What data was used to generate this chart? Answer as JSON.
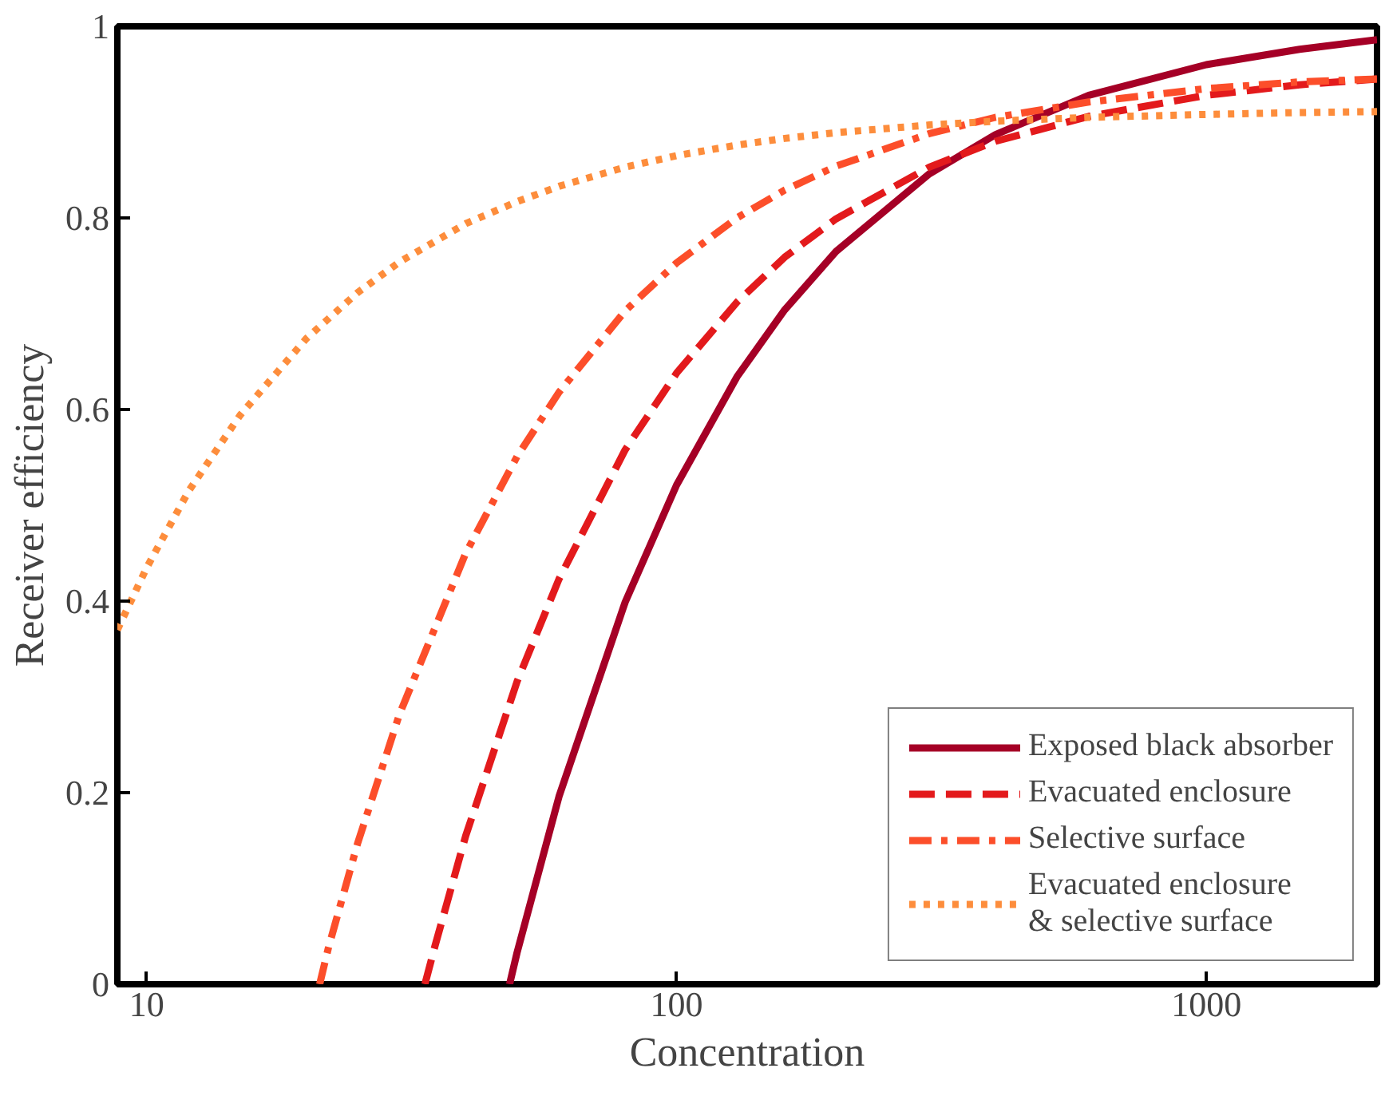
{
  "chart_data": {
    "type": "line",
    "xlabel": "Concentration",
    "ylabel": "Receiver efficiency",
    "log": "x",
    "xlim": [
      8.8,
      2100
    ],
    "xticks": [
      10,
      100,
      1000
    ],
    "ylim": [
      0,
      1
    ],
    "yticks": [
      0,
      0.2,
      0.4,
      0.6,
      0.8,
      1
    ],
    "grid": false,
    "legend": "bottom right",
    "series": [
      {
        "name": "Exposed black absorber",
        "color": "#a50026",
        "line_style": "solid",
        "x": [
          48.4,
          50,
          60,
          80,
          100,
          130,
          160,
          200,
          300,
          400,
          600,
          1000,
          1500,
          2100
        ],
        "values": [
          0,
          0.033,
          0.196,
          0.399,
          0.521,
          0.634,
          0.704,
          0.765,
          0.846,
          0.887,
          0.928,
          0.96,
          0.976,
          0.986
        ]
      },
      {
        "name": "Evacuated enclosure",
        "color": "#e31a1c",
        "line_style": "dashed",
        "x": [
          33.5,
          35,
          40,
          50,
          60,
          80,
          100,
          130,
          160,
          200,
          300,
          400,
          600,
          1000,
          1500,
          2100
        ],
        "values": [
          0,
          0.04,
          0.155,
          0.316,
          0.423,
          0.558,
          0.638,
          0.712,
          0.759,
          0.799,
          0.853,
          0.88,
          0.906,
          0.928,
          0.939,
          0.945
        ]
      },
      {
        "name": "Selective surface",
        "color": "#fc4e2a",
        "line_style": "dashdot",
        "x": [
          21.2,
          22,
          25,
          30,
          40,
          50,
          60,
          80,
          100,
          130,
          160,
          200,
          300,
          400,
          600,
          1000,
          1500,
          2100
        ],
        "values": [
          0,
          0.037,
          0.147,
          0.282,
          0.45,
          0.551,
          0.618,
          0.703,
          0.753,
          0.8,
          0.829,
          0.854,
          0.888,
          0.905,
          0.921,
          0.935,
          0.942,
          0.945
        ]
      },
      {
        "name": "Evacuated enclosure\n& selective surface",
        "color": "#fd8d3c",
        "line_style": "dotted",
        "x": [
          8.8,
          10,
          12,
          15,
          20,
          25,
          30,
          40,
          50,
          60,
          80,
          100,
          130,
          160,
          200,
          300,
          400,
          600,
          1000,
          1500,
          2100
        ],
        "values": [
          0.37,
          0.435,
          0.515,
          0.594,
          0.674,
          0.722,
          0.754,
          0.794,
          0.817,
          0.833,
          0.853,
          0.865,
          0.876,
          0.883,
          0.889,
          0.897,
          0.901,
          0.905,
          0.908,
          0.91,
          0.911
        ]
      }
    ]
  }
}
